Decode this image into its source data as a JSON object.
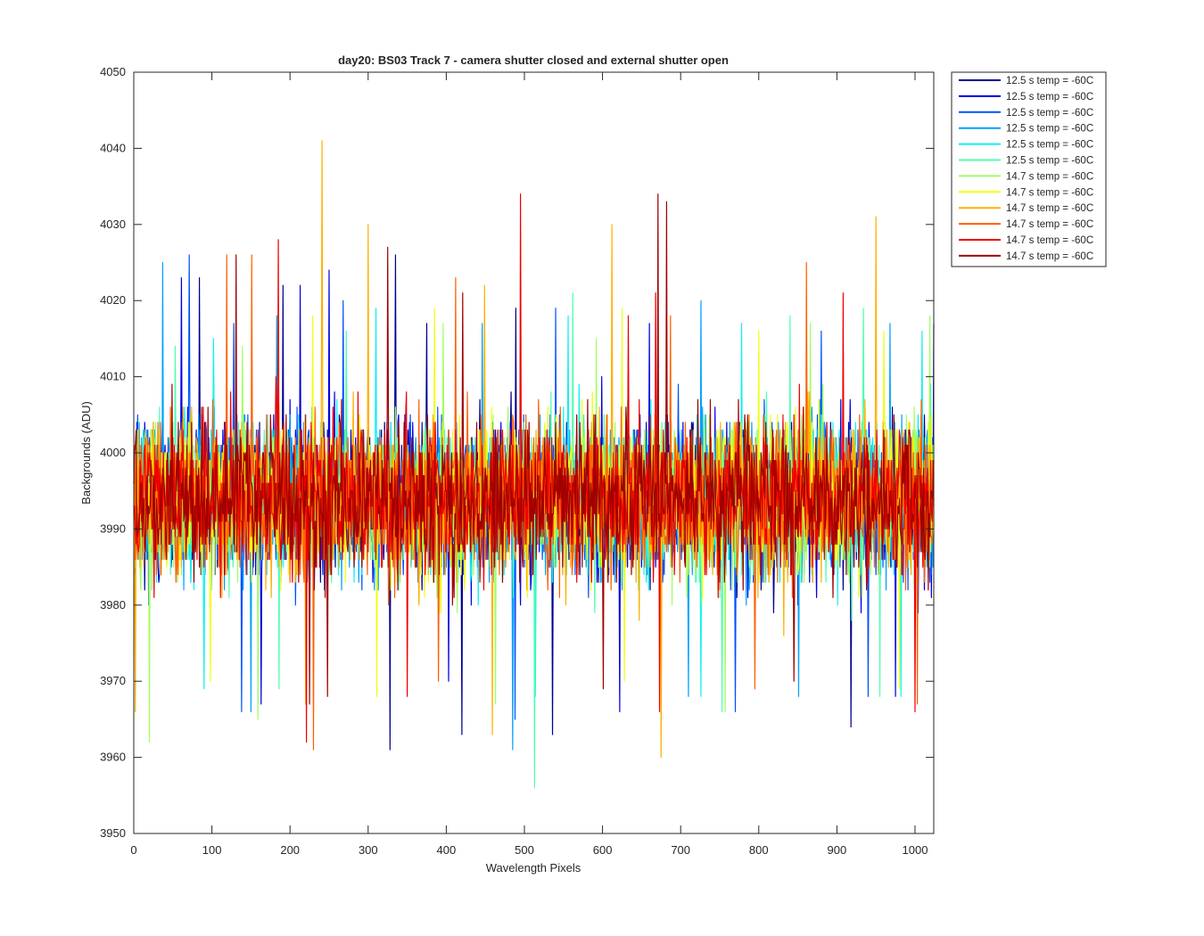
{
  "chart_data": {
    "type": "line",
    "title": "day20: BS03  Track 7 - camera shutter closed and external shutter open",
    "xlabel": "Wavelength Pixels",
    "ylabel": "Backgrounds (ADU)",
    "xlim": [
      0,
      1024
    ],
    "ylim": [
      3950,
      4050
    ],
    "xticks": [
      0,
      100,
      200,
      300,
      400,
      500,
      600,
      700,
      800,
      900,
      1000
    ],
    "yticks": [
      3950,
      3960,
      3970,
      3980,
      3990,
      4000,
      4010,
      4020,
      4030,
      4040,
      4050
    ],
    "grid": false,
    "legend_position": "outside-top-right",
    "series_center": 3994,
    "series_spread": 10,
    "series": [
      {
        "name": "12.5 s temp = -60C",
        "color": "#00008f",
        "peaks": [
          [
            84,
            4023
          ],
          [
            191,
            4022
          ],
          [
            335,
            4026
          ],
          [
            375,
            4017
          ],
          [
            489,
            4019
          ]
        ],
        "dips": [
          [
            328,
            3961
          ],
          [
            536,
            3963
          ],
          [
            918,
            3964
          ],
          [
            420,
            3963
          ]
        ]
      },
      {
        "name": "12.5 s temp = -60C",
        "color": "#0000e0",
        "peaks": [
          [
            61,
            4023
          ],
          [
            213,
            4022
          ],
          [
            250,
            4024
          ],
          [
            660,
            4017
          ],
          [
            1024,
            4017
          ]
        ],
        "dips": [
          [
            163,
            3967
          ],
          [
            403,
            3970
          ],
          [
            622,
            3966
          ],
          [
            975,
            3968
          ]
        ]
      },
      {
        "name": "12.5 s temp = -60C",
        "color": "#0050ff",
        "peaks": [
          [
            71,
            4026
          ],
          [
            128,
            4017
          ],
          [
            268,
            4020
          ],
          [
            540,
            4019
          ],
          [
            880,
            4016
          ]
        ],
        "dips": [
          [
            138,
            3966
          ],
          [
            488,
            3965
          ],
          [
            770,
            3966
          ],
          [
            940,
            3968
          ]
        ]
      },
      {
        "name": "12.5 s temp = -60C",
        "color": "#00a0ff",
        "peaks": [
          [
            37,
            4025
          ],
          [
            183,
            4018
          ],
          [
            446,
            4017
          ],
          [
            726,
            4020
          ],
          [
            968,
            4017
          ]
        ],
        "dips": [
          [
            150,
            3966
          ],
          [
            485,
            3961
          ],
          [
            710,
            3968
          ],
          [
            851,
            3968
          ]
        ]
      },
      {
        "name": "12.5 s temp = -60C",
        "color": "#10f0ef",
        "peaks": [
          [
            102,
            4015
          ],
          [
            310,
            4019
          ],
          [
            556,
            4018
          ],
          [
            778,
            4017
          ],
          [
            1009,
            4016
          ]
        ],
        "dips": [
          [
            90,
            3969
          ],
          [
            514,
            3968
          ],
          [
            726,
            3968
          ],
          [
            982,
            3968
          ]
        ]
      },
      {
        "name": "12.5 s temp = -60C",
        "color": "#50ffaf",
        "peaks": [
          [
            53,
            4014
          ],
          [
            272,
            4016
          ],
          [
            562,
            4021
          ],
          [
            840,
            4018
          ],
          [
            934,
            4019
          ]
        ],
        "dips": [
          [
            186,
            3969
          ],
          [
            513,
            3956
          ],
          [
            753,
            3966
          ],
          [
            955,
            3968
          ]
        ]
      },
      {
        "name": "14.7 s temp = -60C",
        "color": "#a0ff5f",
        "peaks": [
          [
            139,
            4014
          ],
          [
            396,
            4017
          ],
          [
            592,
            4015
          ],
          [
            866,
            4017
          ],
          [
            1019,
            4018
          ]
        ],
        "dips": [
          [
            20,
            3962
          ],
          [
            159,
            3965
          ],
          [
            463,
            3967
          ],
          [
            757,
            3966
          ]
        ]
      },
      {
        "name": "14.7 s temp = -60C",
        "color": "#f0ff0f",
        "peaks": [
          [
            229,
            4018
          ],
          [
            385,
            4019
          ],
          [
            625,
            4019
          ],
          [
            800,
            4016
          ],
          [
            960,
            4016
          ]
        ],
        "dips": [
          [
            98,
            3970
          ],
          [
            311,
            3968
          ],
          [
            628,
            3970
          ],
          [
            980,
            3969
          ]
        ]
      },
      {
        "name": "14.7 s temp = -60C",
        "color": "#ffaf00",
        "peaks": [
          [
            241,
            4041
          ],
          [
            300,
            4030
          ],
          [
            612,
            4030
          ],
          [
            950,
            4031
          ],
          [
            449,
            4022
          ]
        ],
        "dips": [
          [
            459,
            3963
          ],
          [
            675,
            3960
          ],
          [
            2,
            3966
          ],
          [
            220,
            3967
          ]
        ]
      },
      {
        "name": "14.7 s temp = -60C",
        "color": "#ff5f00",
        "peaks": [
          [
            119,
            4026
          ],
          [
            151,
            4026
          ],
          [
            412,
            4023
          ],
          [
            687,
            4018
          ],
          [
            861,
            4025
          ]
        ],
        "dips": [
          [
            230,
            3961
          ],
          [
            390,
            3970
          ],
          [
            795,
            3969
          ],
          [
            1003,
            3967
          ]
        ]
      },
      {
        "name": "14.7 s temp = -60C",
        "color": "#ef0000",
        "peaks": [
          [
            185,
            4028
          ],
          [
            495,
            4034
          ],
          [
            633,
            4018
          ],
          [
            668,
            4021
          ],
          [
            908,
            4021
          ]
        ],
        "dips": [
          [
            221,
            3962
          ],
          [
            673,
            3966
          ],
          [
            1000,
            3966
          ],
          [
            350,
            3968
          ]
        ]
      },
      {
        "name": "14.7 s temp = -60C",
        "color": "#a00000",
        "peaks": [
          [
            131,
            4026
          ],
          [
            325,
            4027
          ],
          [
            671,
            4034
          ],
          [
            682,
            4033
          ],
          [
            421,
            4021
          ]
        ],
        "dips": [
          [
            225,
            3967
          ],
          [
            248,
            3968
          ],
          [
            601,
            3969
          ],
          [
            845,
            3970
          ]
        ]
      }
    ]
  }
}
